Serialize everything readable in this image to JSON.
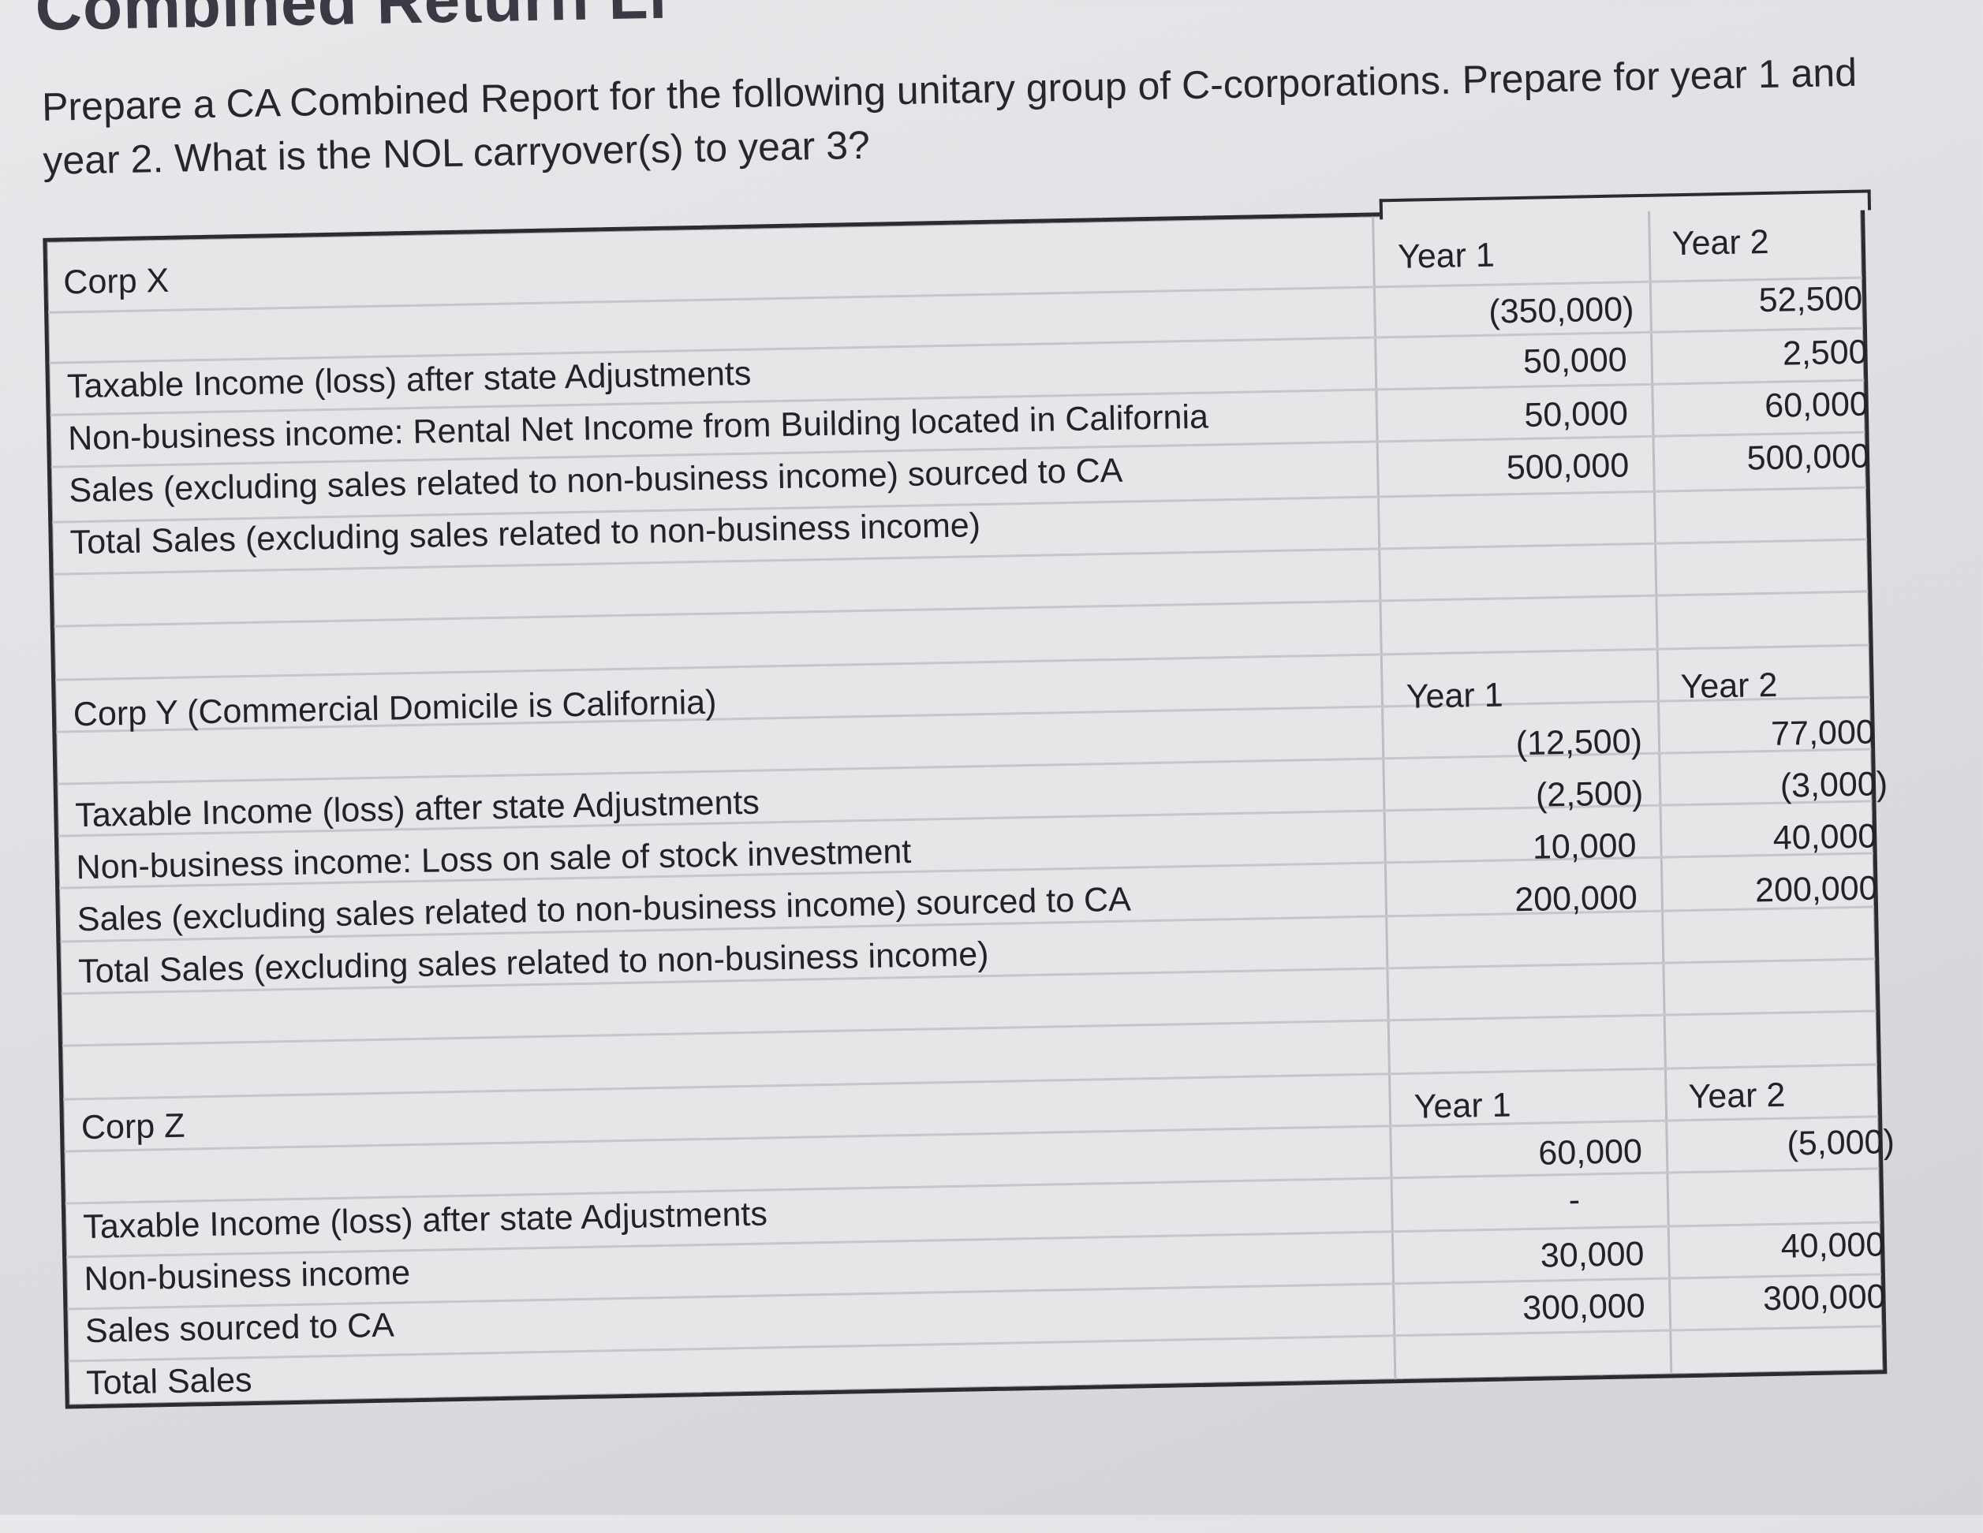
{
  "heading": "Combined Return Li",
  "question": "Prepare a CA Combined Report for the following unitary group of C-corporations.  Prepare for year 1 and year 2.  What is the NOL carryover(s) to year 3?",
  "corps": [
    {
      "name": "Corp X",
      "year1_label": "Year 1",
      "year2_label": "Year 2",
      "rows": [
        {
          "label": "Taxable Income (loss) after state Adjustments",
          "y1": "(350,000)",
          "y2": "52,500"
        },
        {
          "label": "Non-business income:  Rental Net Income from Building located in California",
          "y1": "50,000",
          "y2": "2,500"
        },
        {
          "label": "Sales (excluding sales related to non-business income) sourced to CA",
          "y1": "50,000",
          "y2": "60,000"
        },
        {
          "label": "Total Sales (excluding sales related to non-business income)",
          "y1": "500,000",
          "y2": "500,000"
        }
      ]
    },
    {
      "name": "Corp Y (Commercial Domicile is California)",
      "year1_label": "Year 1",
      "year2_label": "Year 2",
      "rows": [
        {
          "label": "Taxable Income (loss) after state Adjustments",
          "y1": "(12,500)",
          "y2": "77,000"
        },
        {
          "label": "Non-business income: Loss on sale of stock investment",
          "y1": "(2,500)",
          "y2": "(3,000)"
        },
        {
          "label": "Sales (excluding sales related to non-business income) sourced to CA",
          "y1": "10,000",
          "y2": "40,000"
        },
        {
          "label": "Total Sales (excluding sales related to non-business income)",
          "y1": "200,000",
          "y2": "200,000"
        }
      ]
    },
    {
      "name": "Corp Z",
      "year1_label": "Year 1",
      "year2_label": "Year 2",
      "rows": [
        {
          "label": "Taxable Income (loss) after state Adjustments",
          "y1": "60,000",
          "y2": "(5,000)"
        },
        {
          "label": "Non-business income",
          "y1": "-",
          "y2": ""
        },
        {
          "label": "Sales sourced to CA",
          "y1": "30,000",
          "y2": "40,000"
        },
        {
          "label": "Total Sales",
          "y1": "300,000",
          "y2": "300,000"
        }
      ]
    }
  ]
}
